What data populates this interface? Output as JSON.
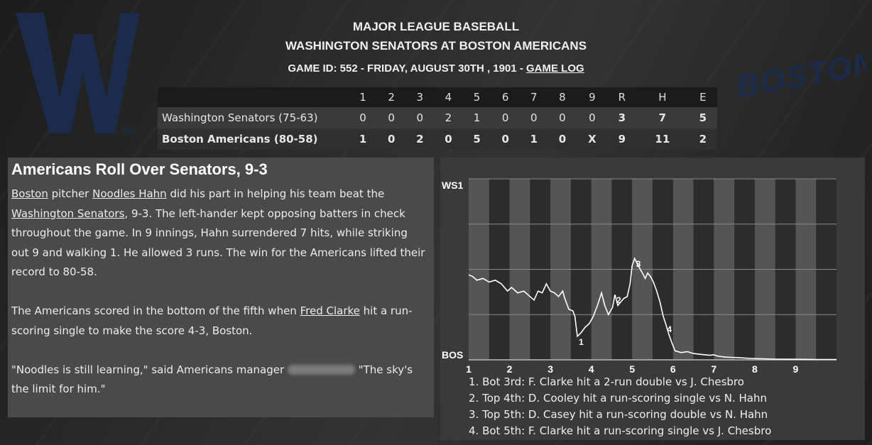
{
  "header": {
    "league": "MAJOR LEAGUE BASEBALL",
    "matchup": "WASHINGTON SENATORS AT BOSTON AMERICANS",
    "game_info": "GAME ID: 552 - FRIDAY, AUGUST 30TH , 1901 - ",
    "game_log_link": "GAME LOG"
  },
  "logos": {
    "home_text": "BOSTON",
    "away_letter": "W",
    "trademark": "TM"
  },
  "scoreboard": {
    "columns": [
      "1",
      "2",
      "3",
      "4",
      "5",
      "6",
      "7",
      "8",
      "9",
      "R",
      "H",
      "E"
    ],
    "rows": [
      {
        "team": "Washington Senators (75-63)",
        "cells": [
          "0",
          "0",
          "0",
          "2",
          "1",
          "0",
          "0",
          "0",
          "0",
          "3",
          "7",
          "5"
        ]
      },
      {
        "team": "Boston Americans (80-58)",
        "cells": [
          "1",
          "0",
          "2",
          "0",
          "5",
          "0",
          "1",
          "0",
          "X",
          "9",
          "11",
          "2"
        ]
      }
    ]
  },
  "story": {
    "headline": "Americans Roll Over Senators, 9-3",
    "p1": {
      "link_boston": "Boston",
      "t1": " pitcher ",
      "link_pitcher": "Noodles Hahn",
      "t2": " did his part in helping his team beat the ",
      "link_opponent": "Washington Senators",
      "t3": ", 9-3. The left-hander kept opposing batters in check throughout the game. In 9 innings, Hahn surrendered 7 hits, while striking out 9 and walking 1. He allowed 3 runs. The win for the Americans lifted their record to 80-58."
    },
    "p2": {
      "t1": "The Americans scored in the bottom of the fifth when ",
      "link_batter": "Fred Clarke",
      "t2": " hit a run-scoring single to make the score 4-3, Boston."
    },
    "p3": {
      "t1": "\"Noodles is still learning,\" said Americans manager ",
      "t2": " \"The sky's the limit for him.\""
    }
  },
  "chart_data": {
    "type": "line",
    "ylabel_top": "WS1",
    "ylabel_bottom": "BOS",
    "x_ticks": [
      "1",
      "2",
      "3",
      "4",
      "5",
      "6",
      "7",
      "8",
      "9"
    ],
    "x_tick_pos": [
      1,
      2,
      3,
      4,
      5,
      6,
      7,
      8,
      9
    ],
    "xlim": [
      1,
      10
    ],
    "ylim": [
      0,
      1
    ],
    "half_inning_bands": [
      [
        1,
        1.5
      ],
      [
        2,
        2.5
      ],
      [
        3,
        3.5
      ],
      [
        4,
        4.5
      ],
      [
        5,
        5.5
      ],
      [
        6,
        6.5
      ],
      [
        7,
        7.5
      ],
      [
        8,
        8.5
      ],
      [
        9,
        9.5
      ]
    ],
    "series": [
      {
        "values": [
          [
            1,
            0.47
          ],
          [
            1.1,
            0.46
          ],
          [
            1.2,
            0.44
          ],
          [
            1.35,
            0.45
          ],
          [
            1.5,
            0.43
          ],
          [
            1.65,
            0.44
          ],
          [
            1.8,
            0.42
          ],
          [
            1.95,
            0.38
          ],
          [
            2.05,
            0.4
          ],
          [
            2.2,
            0.37
          ],
          [
            2.35,
            0.38
          ],
          [
            2.5,
            0.35
          ],
          [
            2.6,
            0.33
          ],
          [
            2.7,
            0.38
          ],
          [
            2.8,
            0.37
          ],
          [
            2.9,
            0.42
          ],
          [
            3.0,
            0.38
          ],
          [
            3.1,
            0.37
          ],
          [
            3.2,
            0.35
          ],
          [
            3.3,
            0.38
          ],
          [
            3.35,
            0.34
          ],
          [
            3.45,
            0.28
          ],
          [
            3.55,
            0.27
          ],
          [
            3.6,
            0.24
          ],
          [
            3.66,
            0.13
          ],
          [
            3.75,
            0.15
          ],
          [
            3.85,
            0.18
          ],
          [
            3.95,
            0.2
          ],
          [
            4.05,
            0.24
          ],
          [
            4.15,
            0.3
          ],
          [
            4.25,
            0.37
          ],
          [
            4.33,
            0.3
          ],
          [
            4.42,
            0.25
          ],
          [
            4.52,
            0.29
          ],
          [
            4.58,
            0.36
          ],
          [
            4.65,
            0.3
          ],
          [
            4.72,
            0.32
          ],
          [
            4.8,
            0.34
          ],
          [
            4.88,
            0.35
          ],
          [
            4.95,
            0.42
          ],
          [
            5.0,
            0.52
          ],
          [
            5.06,
            0.56
          ],
          [
            5.15,
            0.52
          ],
          [
            5.25,
            0.48
          ],
          [
            5.32,
            0.45
          ],
          [
            5.38,
            0.48
          ],
          [
            5.45,
            0.46
          ],
          [
            5.52,
            0.43
          ],
          [
            5.6,
            0.38
          ],
          [
            5.68,
            0.32
          ],
          [
            5.76,
            0.24
          ],
          [
            5.82,
            0.2
          ],
          [
            5.9,
            0.14
          ],
          [
            5.98,
            0.09
          ],
          [
            6.05,
            0.05
          ],
          [
            6.2,
            0.04
          ],
          [
            6.35,
            0.045
          ],
          [
            6.5,
            0.035
          ],
          [
            6.7,
            0.03
          ],
          [
            6.9,
            0.025
          ],
          [
            7.0,
            0.028
          ],
          [
            7.1,
            0.02
          ],
          [
            7.3,
            0.015
          ],
          [
            7.6,
            0.012
          ],
          [
            7.9,
            0.008
          ],
          [
            8.2,
            0.006
          ],
          [
            8.5,
            0.004
          ],
          [
            9.0,
            0.003
          ],
          [
            9.5,
            0.002
          ],
          [
            10,
            0.002
          ]
        ]
      }
    ],
    "markers": [
      {
        "label": "1",
        "x": 3.66,
        "y": 0.13
      },
      {
        "label": "2",
        "x": 4.58,
        "y": 0.36
      },
      {
        "label": "3",
        "x": 5.06,
        "y": 0.56
      },
      {
        "label": "4",
        "x": 5.82,
        "y": 0.2
      }
    ]
  },
  "chart_legend": [
    "1. Bot 3rd: F. Clarke hit a 2-run double vs J. Chesbro",
    "2. Top 4th: D. Cooley hit a run-scoring single vs N. Hahn",
    "3. Top 5th: D. Casey hit a run-scoring double vs N. Hahn",
    "4. Bot 5th: F. Clarke hit a run-scoring single vs J. Chesbro"
  ],
  "colors": {
    "navy": "#1b2b4a",
    "chart_line": "#ffffff"
  }
}
